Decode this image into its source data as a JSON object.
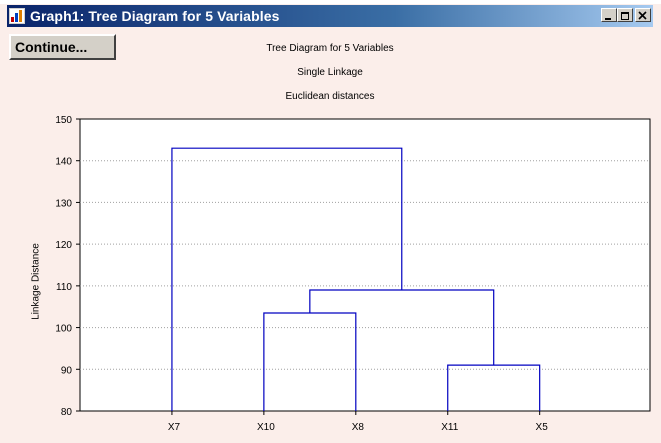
{
  "window": {
    "title": "Graph1: Tree Diagram for 5 Variables",
    "icon": "graph-app-icon",
    "controls": [
      "minimize",
      "maximize",
      "close"
    ]
  },
  "toolbar": {
    "continue_label": "Continue..."
  },
  "chart_data": {
    "type": "dendrogram",
    "title": "Tree Diagram for 5 Variables",
    "subtitle": "Single Linkage",
    "subtitle2": "Euclidean distances",
    "xlabel": "",
    "ylabel": "Linkage Distance",
    "ylim": [
      80,
      150
    ],
    "yticks": [
      "80",
      "90",
      "100",
      "110",
      "120",
      "130",
      "140",
      "150"
    ],
    "leaves": [
      "X7",
      "X10",
      "X8",
      "X11",
      "X5"
    ],
    "grid": true,
    "line_color": "#0000c0",
    "merges": [
      {
        "left": "X11",
        "right": "X5",
        "height": 91
      },
      {
        "left": "X10",
        "right": "X8",
        "height": 103.5
      },
      {
        "left": "X10+X8",
        "right": "X11+X5",
        "height": 109
      },
      {
        "left": "X7",
        "right": "X10+X8+X11+X5",
        "height": 143
      }
    ]
  }
}
